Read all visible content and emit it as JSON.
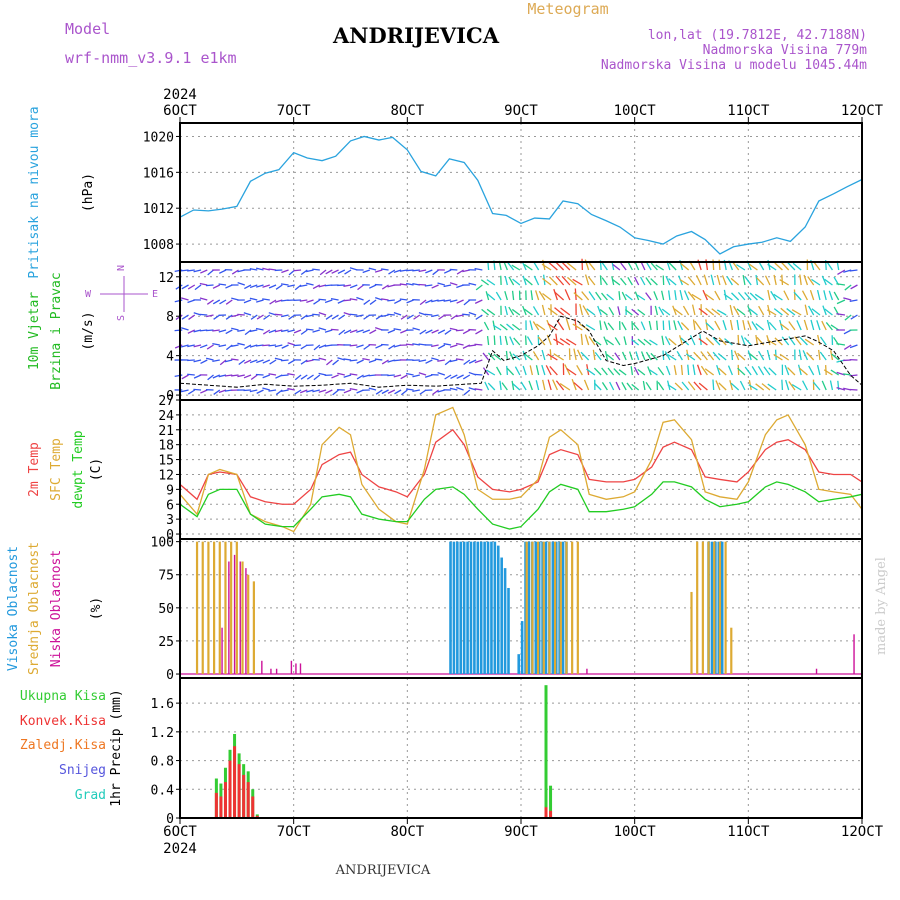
{
  "header": {
    "station": "ANDRIJEVICA",
    "product": "Meteogram",
    "model_label": "Model",
    "model_name": "wrf-nmm_v3.9.1 e1km",
    "lonlat": "lon,lat (19.7812E, 42.7188N)",
    "altitude": "Nadmorska Visina 779m",
    "model_altitude": "Nadmorska Visina u modelu 1045.44m",
    "footer": "ANDRIJEVICA",
    "credit": "made by Angel"
  },
  "colors": {
    "pressure": "#2aa3de",
    "temp2m": "#ee4444",
    "sfc": "#ddaa33",
    "dewpt": "#22cc22",
    "high_cloud": "#2299dd",
    "mid_cloud": "#ddaa33",
    "low_cloud": "#cc1199",
    "total_precip": "#33cc33",
    "conv_precip": "#ee3333",
    "frozen_precip": "#ee7722",
    "snow": "#5555dd",
    "hail": "#22ccbb",
    "purple_text": "#aa55cc",
    "orange_text": "#ddaa55"
  },
  "chart_data": [
    {
      "type": "line",
      "panel": "pressure",
      "ylabel": [
        "Pritisak na nivou mora",
        "(hPa)"
      ],
      "ylim": [
        1006,
        1021.5
      ],
      "yticks": [
        1008,
        1012,
        1016,
        1020
      ],
      "x_start": "6OCT 2024",
      "x_end": "12OCT",
      "xticks": [
        "6OCT",
        "7OCT",
        "8OCT",
        "9OCT",
        "10OCT",
        "11OCT",
        "12OCT"
      ],
      "x_top_year": "2024",
      "series": [
        {
          "name": "Pritisak na nivou mora",
          "x": [
            0,
            0.12,
            0.25,
            0.37,
            0.5,
            0.62,
            0.75,
            0.87,
            1.0,
            1.12,
            1.25,
            1.37,
            1.5,
            1.62,
            1.75,
            1.87,
            2.0,
            2.12,
            2.25,
            2.37,
            2.5,
            2.62,
            2.75,
            2.87,
            3.0,
            3.12,
            3.25,
            3.37,
            3.5,
            3.62,
            3.75,
            3.87,
            4.0,
            4.12,
            4.25,
            4.37,
            4.5,
            4.62,
            4.75,
            4.87,
            5.0,
            5.12,
            5.25,
            5.37,
            5.5,
            5.62,
            5.75,
            5.87,
            6.0
          ],
          "values": [
            1011,
            1011.8,
            1011.7,
            1011.9,
            1012.2,
            1015,
            1015.9,
            1016.3,
            1018.2,
            1017.6,
            1017.3,
            1017.8,
            1019.5,
            1020,
            1019.6,
            1019.9,
            1018.5,
            1016.1,
            1015.6,
            1017.5,
            1017.1,
            1015.1,
            1011.4,
            1011.2,
            1010.3,
            1010.9,
            1010.8,
            1012.8,
            1012.5,
            1011.3,
            1010.6,
            1009.9,
            1008.7,
            1008.4,
            1008,
            1008.9,
            1009.4,
            1008.5,
            1006.9,
            1007.7,
            1008,
            1008.2,
            1008.7,
            1008.3,
            1009.9,
            1012.8,
            1013.6,
            1014.4,
            1015.2
          ]
        }
      ]
    },
    {
      "type": "line",
      "panel": "wind",
      "ylabel": [
        "10m Vjetar",
        "Brzina i Pravac",
        "(m/s)"
      ],
      "ylim": [
        -0.5,
        13.5
      ],
      "yticks": [
        0,
        4,
        8,
        12
      ],
      "compass": {
        "north": "N",
        "west": "W",
        "east": "E",
        "south": "S"
      },
      "series": [
        {
          "name": "10m Vjetar",
          "x": [
            0,
            0.25,
            0.5,
            0.75,
            1.0,
            1.25,
            1.5,
            1.75,
            2.0,
            2.25,
            2.5,
            2.65,
            2.75,
            2.85,
            3.0,
            3.15,
            3.25,
            3.35,
            3.5,
            3.6,
            3.75,
            3.9,
            4.0,
            4.25,
            4.5,
            4.6,
            4.75,
            5.0,
            5.25,
            5.5,
            5.6,
            5.75,
            5.9,
            6.0
          ],
          "values": [
            1.2,
            1.0,
            0.8,
            1.1,
            0.9,
            1.0,
            1.2,
            0.8,
            1.0,
            0.9,
            1.1,
            1.2,
            4.5,
            3.5,
            4.0,
            5.0,
            6.0,
            8.0,
            7.5,
            6.5,
            3.5,
            3.0,
            3.2,
            4.0,
            5.8,
            6.5,
            5.5,
            5.0,
            5.5,
            6.0,
            5.5,
            4.5,
            2.0,
            1.0
          ]
        }
      ]
    },
    {
      "type": "line",
      "panel": "temperature",
      "ylabel": [
        "2m Temp",
        "SFC Temp",
        "dewpt Temp",
        "(C)"
      ],
      "ylim": [
        -1,
        27
      ],
      "yticks": [
        0,
        3,
        6,
        9,
        12,
        15,
        18,
        21,
        24,
        27
      ],
      "series": [
        {
          "name": "2m Temp",
          "x": [
            0,
            0.15,
            0.25,
            0.35,
            0.5,
            0.62,
            0.75,
            0.9,
            1.0,
            1.15,
            1.25,
            1.4,
            1.5,
            1.6,
            1.75,
            1.9,
            2.0,
            2.15,
            2.25,
            2.4,
            2.5,
            2.62,
            2.75,
            2.9,
            3.0,
            3.15,
            3.25,
            3.35,
            3.5,
            3.6,
            3.75,
            3.9,
            4.0,
            4.15,
            4.25,
            4.35,
            4.5,
            4.62,
            4.75,
            4.9,
            5.0,
            5.15,
            5.25,
            5.35,
            5.5,
            5.62,
            5.75,
            5.9,
            6.0
          ],
          "values": [
            10,
            7,
            12,
            12.5,
            12,
            7.5,
            6.5,
            6,
            6,
            9,
            14,
            16,
            16.5,
            12,
            9.5,
            8.5,
            7.5,
            12,
            18.5,
            21,
            18,
            11.5,
            9,
            8.5,
            9,
            10.5,
            16,
            17,
            16,
            11,
            10.5,
            10.5,
            11,
            13.5,
            17.5,
            18.5,
            17,
            11.5,
            11,
            10.5,
            12.5,
            17,
            18.5,
            19,
            17,
            12.5,
            12,
            12,
            10.5
          ]
        },
        {
          "name": "SFC Temp",
          "x": [
            0,
            0.15,
            0.25,
            0.35,
            0.5,
            0.62,
            0.75,
            0.9,
            1.0,
            1.15,
            1.25,
            1.4,
            1.5,
            1.6,
            1.75,
            1.9,
            2.0,
            2.15,
            2.25,
            2.4,
            2.5,
            2.62,
            2.75,
            2.9,
            3.0,
            3.15,
            3.25,
            3.35,
            3.5,
            3.6,
            3.75,
            3.9,
            4.0,
            4.15,
            4.25,
            4.35,
            4.5,
            4.62,
            4.75,
            4.9,
            5.0,
            5.15,
            5.25,
            5.35,
            5.5,
            5.62,
            5.75,
            5.9,
            6.0
          ],
          "values": [
            8,
            4,
            12,
            13,
            12,
            4,
            2.5,
            1.5,
            0.5,
            6,
            18,
            21.5,
            20,
            10,
            5,
            2.5,
            2,
            13,
            24,
            25.5,
            20,
            9,
            7,
            7,
            7.5,
            11,
            19.5,
            21,
            18,
            8,
            7,
            7.5,
            8.5,
            15,
            22.5,
            23,
            19,
            8.5,
            7.5,
            7,
            10.5,
            20,
            23,
            24,
            18,
            9,
            8.5,
            8,
            5
          ]
        },
        {
          "name": "dewpt Temp",
          "x": [
            0,
            0.15,
            0.25,
            0.35,
            0.5,
            0.62,
            0.75,
            0.9,
            1.0,
            1.15,
            1.25,
            1.4,
            1.5,
            1.6,
            1.75,
            1.9,
            2.0,
            2.15,
            2.25,
            2.4,
            2.5,
            2.62,
            2.75,
            2.9,
            3.0,
            3.15,
            3.25,
            3.35,
            3.5,
            3.6,
            3.75,
            3.9,
            4.0,
            4.15,
            4.25,
            4.35,
            4.5,
            4.62,
            4.75,
            4.9,
            5.0,
            5.15,
            5.25,
            5.35,
            5.5,
            5.62,
            5.75,
            5.9,
            6.0
          ],
          "values": [
            6,
            3.5,
            8,
            9,
            9,
            4,
            2,
            1.5,
            1.5,
            5,
            7.5,
            8,
            7.5,
            4,
            3,
            2.5,
            2.5,
            7,
            9,
            9.5,
            8,
            5,
            2,
            1,
            1.5,
            5,
            8.5,
            10,
            9,
            4.5,
            4.5,
            5,
            5.5,
            8,
            10.5,
            10.5,
            9.5,
            7,
            5.5,
            6,
            6.5,
            9.5,
            10.5,
            10,
            8.5,
            6.5,
            7,
            7.5,
            8
          ]
        }
      ]
    },
    {
      "type": "bar",
      "panel": "cloud",
      "ylabel": [
        "Visoka Oblacnost",
        "Srednja Oblacnost",
        "Niska Oblacnost",
        "(%)"
      ],
      "ylim": [
        -3,
        102
      ],
      "yticks": [
        0,
        25,
        50,
        75,
        100
      ],
      "series": [
        {
          "name": "Visoka Oblacnost",
          "x": [
            2.38,
            2.41,
            2.44,
            2.47,
            2.5,
            2.53,
            2.56,
            2.59,
            2.62,
            2.65,
            2.68,
            2.71,
            2.74,
            2.77,
            2.8,
            2.83,
            2.86,
            2.89,
            2.98,
            3.01,
            3.04,
            3.07,
            3.1,
            3.13,
            3.16,
            3.19,
            3.22,
            3.25,
            3.28,
            3.31,
            3.34,
            3.37,
            3.4,
            4.65,
            4.68,
            4.71,
            4.74,
            4.77
          ],
          "values": [
            100,
            100,
            100,
            100,
            100,
            100,
            100,
            100,
            100,
            100,
            100,
            100,
            100,
            100,
            97,
            88,
            80,
            65,
            15,
            40,
            100,
            100,
            100,
            100,
            100,
            100,
            100,
            100,
            100,
            100,
            100,
            100,
            100,
            100,
            100,
            100,
            100,
            100
          ]
        },
        {
          "name": "Srednja Oblacnost",
          "x": [
            0.15,
            0.2,
            0.25,
            0.3,
            0.35,
            0.4,
            0.45,
            0.5,
            0.55,
            0.6,
            0.65,
            3.05,
            3.1,
            3.15,
            3.2,
            3.25,
            3.3,
            3.35,
            3.4,
            3.45,
            3.5,
            4.5,
            4.55,
            4.6,
            4.65,
            4.7,
            4.75,
            4.8,
            4.85
          ],
          "values": [
            100,
            100,
            100,
            100,
            100,
            100,
            100,
            100,
            85,
            75,
            70,
            100,
            100,
            100,
            100,
            100,
            100,
            100,
            100,
            100,
            100,
            62,
            100,
            100,
            100,
            100,
            100,
            100,
            35
          ]
        },
        {
          "name": "Niska Oblacnost",
          "x": [
            0.37,
            0.43,
            0.48,
            0.53,
            0.58,
            0.72,
            0.8,
            0.85,
            0.98,
            1.02,
            1.06,
            3.58,
            5.6,
            5.93
          ],
          "values": [
            35,
            85,
            90,
            85,
            80,
            10,
            4,
            4,
            10,
            8,
            8,
            4,
            4,
            30
          ]
        }
      ]
    },
    {
      "type": "bar",
      "panel": "precip",
      "ylabel": [
        "1hr Precip (mm)"
      ],
      "legend": [
        "Ukupna Kisa",
        "Konvek.Kisa",
        "Zaledj.Kisa",
        "Snijeg",
        "Grad"
      ],
      "ylim": [
        0,
        1.95
      ],
      "yticks": [
        0,
        0.4,
        0.8,
        1.2,
        1.6
      ],
      "series": [
        {
          "name": "Ukupna Kisa",
          "x": [
            0.32,
            0.36,
            0.4,
            0.44,
            0.48,
            0.52,
            0.56,
            0.6,
            0.64,
            0.68,
            3.22,
            3.26
          ],
          "values": [
            0.55,
            0.48,
            0.7,
            0.95,
            1.17,
            0.9,
            0.75,
            0.65,
            0.4,
            0.05,
            1.85,
            0.45
          ]
        },
        {
          "name": "Konvek.Kisa",
          "x": [
            0.32,
            0.36,
            0.4,
            0.44,
            0.48,
            0.52,
            0.56,
            0.6,
            0.64,
            0.68,
            3.22,
            3.26
          ],
          "values": [
            0.35,
            0.3,
            0.5,
            0.8,
            1.0,
            0.75,
            0.6,
            0.5,
            0.3,
            0.03,
            0.15,
            0.1
          ]
        }
      ]
    }
  ]
}
